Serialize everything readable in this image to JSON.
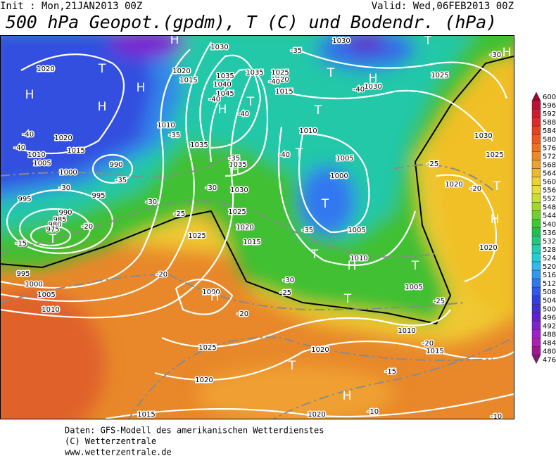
{
  "header": {
    "init": "Init : Mon,21JAN2013 00Z",
    "valid": "Valid: Wed,06FEB2013 00Z",
    "title": "500 hPa Geopot.(gpdm), T (C) und Bodendr. (hPa)"
  },
  "legend": {
    "levels": [
      600,
      596,
      592,
      588,
      584,
      580,
      576,
      572,
      568,
      564,
      560,
      556,
      552,
      548,
      544,
      540,
      536,
      532,
      528,
      524,
      520,
      516,
      512,
      508,
      504,
      500,
      496,
      492,
      488,
      484,
      480,
      476
    ]
  },
  "map": {
    "labels": [
      "1020",
      "T",
      "H",
      "H",
      "H",
      "-40",
      "1020",
      "-40",
      "1015",
      "1010",
      "1005",
      "990",
      "1000",
      "-35",
      "-30",
      "995",
      "995",
      "990",
      "985",
      "980",
      "975",
      "-20",
      "T",
      "-15",
      "995",
      "1000",
      "1005",
      "1010",
      "-30",
      "-25",
      "1025",
      "-20",
      "H",
      "1020",
      "1015",
      "1010",
      "-35",
      "1035",
      "1040",
      "1035",
      "1045",
      "-40",
      "H",
      "-40",
      "T",
      "1030",
      "1035",
      "1025",
      "1020",
      "1015",
      "-40",
      "-35",
      "1030",
      "T",
      "H",
      "-30",
      "T",
      "H",
      "1030",
      "-40",
      "1025",
      "T",
      "1010",
      "T",
      "-40",
      "1005",
      "1030",
      "1025",
      "-25",
      "-35",
      "1035",
      "H",
      "1030",
      "-30",
      "1000",
      "1020",
      "-20",
      "T",
      "T",
      "1025",
      "1020",
      "1015",
      "-35",
      "1005",
      "H",
      "1020",
      "T",
      "1010",
      "H",
      "T",
      "1000",
      "H",
      "-30",
      "-25",
      "1005",
      "T",
      "-25",
      "-20",
      "1010",
      "-20",
      "1015",
      "1020",
      "1025",
      "T",
      "-15",
      "1020",
      "H",
      "1015",
      "1020",
      "-10",
      "-10"
    ]
  },
  "footer": {
    "lines": [
      "Daten: GFS-Modell des amerikanischen Wetterdienstes",
      "(C) Wetterzentrale",
      "www.wetterzentrale.de"
    ]
  }
}
